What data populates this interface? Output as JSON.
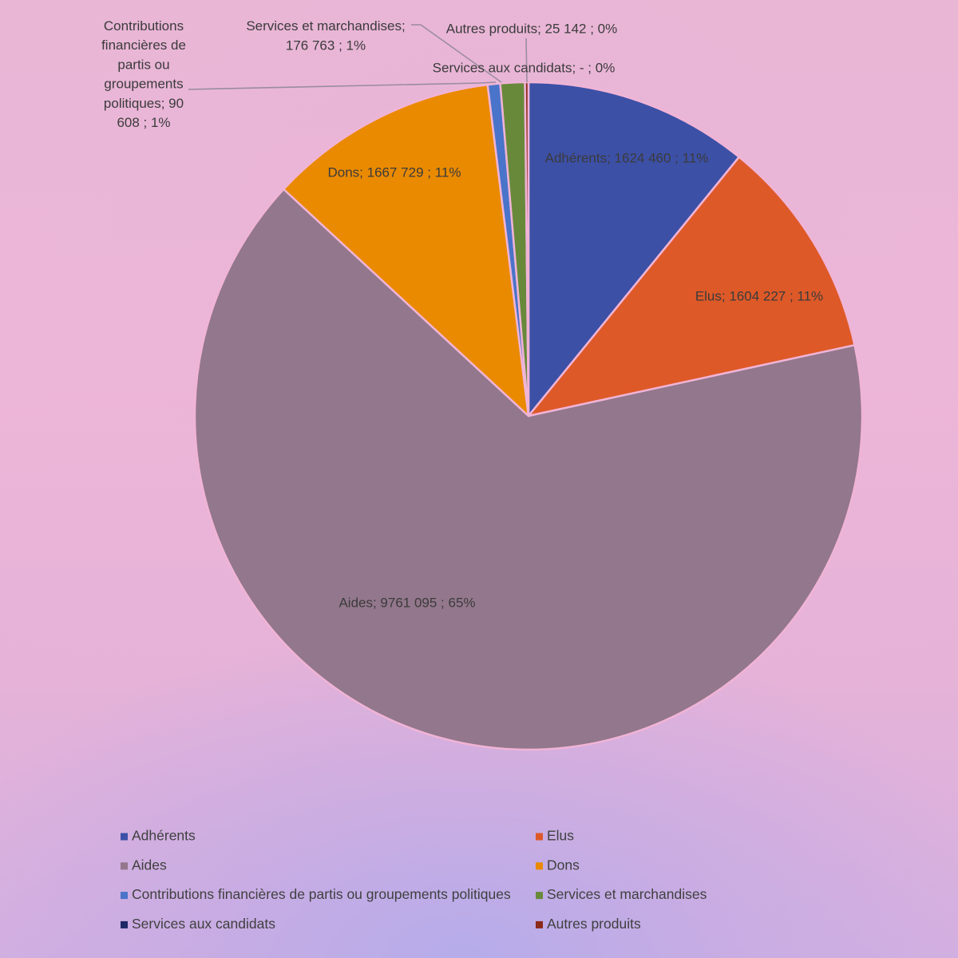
{
  "chart_data": {
    "type": "pie",
    "title": "",
    "legend_position": "bottom",
    "slices": [
      {
        "name": "Adhérents",
        "value": 1624460,
        "label": "Adhérents;  1624 460 ; 11%",
        "color": "#3c50a6"
      },
      {
        "name": "Elus",
        "value": 1604227,
        "label": "Elus;  1604 227 ; 11%",
        "color": "#de5928"
      },
      {
        "name": "Aides",
        "value": 9761095,
        "label": "Aides;  9761 095 ; 65%",
        "color": "#93778c"
      },
      {
        "name": "Dons",
        "value": 1667729,
        "label": "Dons;  1667 729 ; 11%",
        "color": "#ea8a00"
      },
      {
        "name": "Contributions financières de partis ou groupements politiques",
        "value": 90608,
        "label": [
          "Contributions",
          "financières de",
          "partis ou",
          "groupements",
          "politiques;  90",
          "608 ; 1%"
        ],
        "color": "#4a74c9"
      },
      {
        "name": "Services et marchandises",
        "value": 176763,
        "label": [
          "Services et marchandises;",
          "176 763 ; 1%"
        ],
        "color": "#68893a"
      },
      {
        "name": "Services aux candidats",
        "value": 0,
        "label": "Services aux candidats;  -   ; 0%",
        "color": "#1d2a66"
      },
      {
        "name": "Autres produits",
        "value": 25142,
        "label": "Autres produits;  25 142 ; 0%",
        "color": "#8c2a18"
      }
    ]
  }
}
